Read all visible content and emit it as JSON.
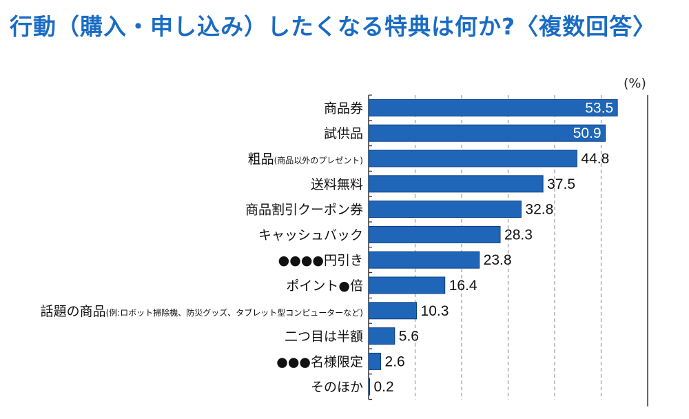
{
  "title": "行動（購入・申し込み）したくなる特典は何か?〈複数回答〉",
  "unit_label": "(%)",
  "chart_data": {
    "type": "bar",
    "orientation": "horizontal",
    "xlim": [
      0,
      60
    ],
    "grid": "vertical dashed",
    "bar_color": "#1f66b8",
    "categories": [
      {
        "label": "商品券",
        "note": ""
      },
      {
        "label": "試供品",
        "note": ""
      },
      {
        "label": "粗品",
        "note": "(商品以外のプレゼント)"
      },
      {
        "label": "送料無料",
        "note": ""
      },
      {
        "label": "商品割引クーポン券",
        "note": ""
      },
      {
        "label": "キャッシュバック",
        "note": ""
      },
      {
        "label": "●●●●円引き",
        "note": ""
      },
      {
        "label": "ポイント●倍",
        "note": ""
      },
      {
        "label": "話題の商品",
        "note": "(例:ロボット掃除機、防災グッズ、タブレット型コンピューターなど)"
      },
      {
        "label": "二つ目は半額",
        "note": ""
      },
      {
        "label": "●●●名様限定",
        "note": ""
      },
      {
        "label": "そのほか",
        "note": ""
      }
    ],
    "values": [
      53.5,
      50.9,
      44.8,
      37.5,
      32.8,
      28.3,
      23.8,
      16.4,
      10.3,
      5.6,
      2.6,
      0.2
    ],
    "value_labels": [
      "53.5",
      "50.9",
      "44.8",
      "37.5",
      "32.8",
      "28.3",
      "23.8",
      "16.4",
      "10.3",
      "5.6",
      "2.6",
      "0.2"
    ]
  }
}
